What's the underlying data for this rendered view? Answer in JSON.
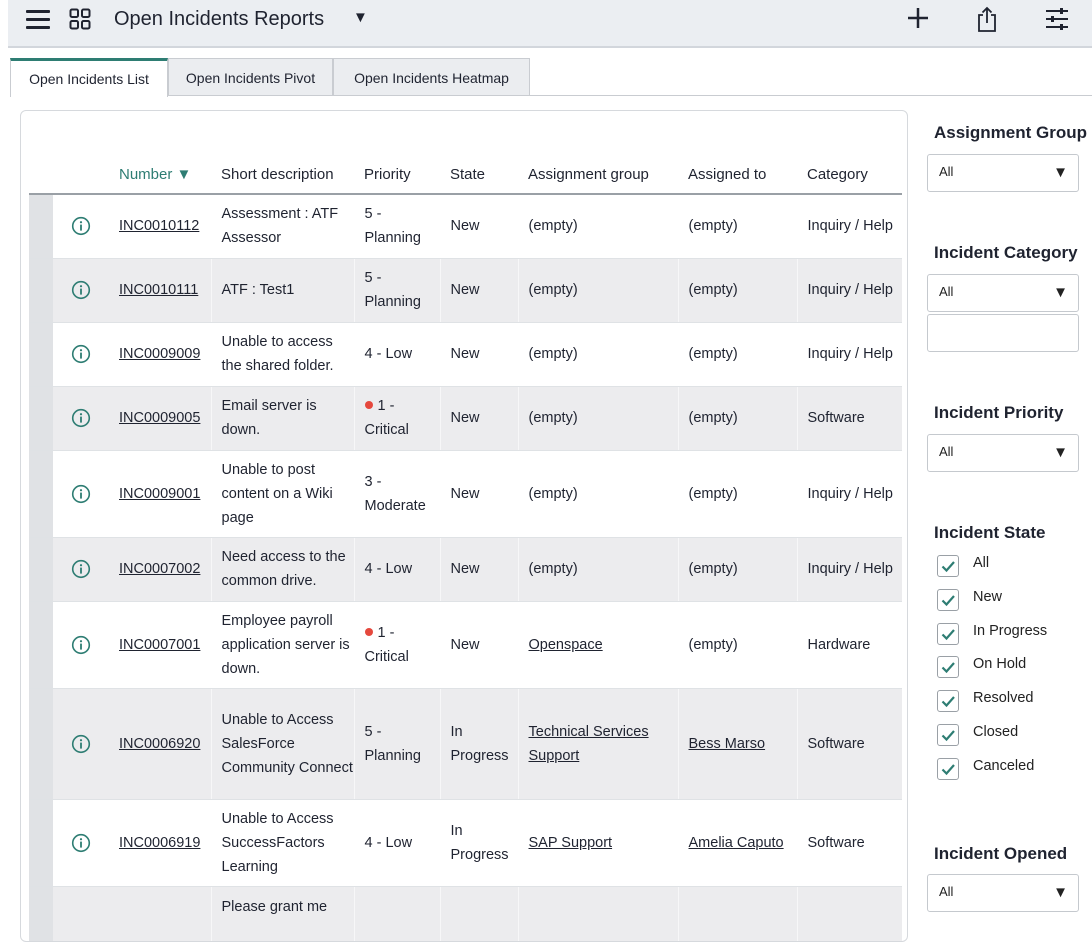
{
  "header": {
    "title": "Open Incidents Reports",
    "icons": [
      "hamburger-menu-icon",
      "grid-apps-icon",
      "caret-down-icon",
      "plus-icon",
      "share-icon",
      "sliders-icon"
    ]
  },
  "tabs": [
    {
      "label": "Open Incidents List",
      "active": true
    },
    {
      "label": "Open Incidents Pivot",
      "active": false
    },
    {
      "label": "Open Incidents Heatmap",
      "active": false
    }
  ],
  "table": {
    "columns": {
      "number": "Number ▼",
      "short_description": "Short description",
      "priority": "Priority",
      "state": "State",
      "assignment_group": "Assignment group",
      "assigned_to": "Assigned to",
      "category": "Category"
    },
    "rows": [
      {
        "number": "INC0010112",
        "short_description": "Assessment : ATF Assessor",
        "priority": "5 - Planning",
        "critical": false,
        "state": "New",
        "assignment_group": "(empty)",
        "group_link": false,
        "assigned_to": "(empty)",
        "assigned_link": false,
        "category": "Inquiry / Help"
      },
      {
        "number": "INC0010111",
        "short_description": "ATF : Test1",
        "priority": "5 - Planning",
        "critical": false,
        "state": "New",
        "assignment_group": "(empty)",
        "group_link": false,
        "assigned_to": "(empty)",
        "assigned_link": false,
        "category": "Inquiry / Help"
      },
      {
        "number": "INC0009009",
        "short_description": "Unable to access the shared folder.",
        "priority": "4 - Low",
        "critical": false,
        "state": "New",
        "assignment_group": "(empty)",
        "group_link": false,
        "assigned_to": "(empty)",
        "assigned_link": false,
        "category": "Inquiry / Help"
      },
      {
        "number": "INC0009005",
        "short_description": "Email server is down.",
        "priority": "1 - Critical",
        "critical": true,
        "state": "New",
        "assignment_group": "(empty)",
        "group_link": false,
        "assigned_to": "(empty)",
        "assigned_link": false,
        "category": "Software"
      },
      {
        "number": "INC0009001",
        "short_description": "Unable to post content on a Wiki page",
        "priority": "3 - Moderate",
        "critical": false,
        "state": "New",
        "assignment_group": "(empty)",
        "group_link": false,
        "assigned_to": "(empty)",
        "assigned_link": false,
        "category": "Inquiry / Help"
      },
      {
        "number": "INC0007002",
        "short_description": "Need access to the common drive.",
        "priority": "4 - Low",
        "critical": false,
        "state": "New",
        "assignment_group": "(empty)",
        "group_link": false,
        "assigned_to": "(empty)",
        "assigned_link": false,
        "category": "Inquiry / Help"
      },
      {
        "number": "INC0007001",
        "short_description": "Employee payroll application server is down.",
        "priority": "1 - Critical",
        "critical": true,
        "state": "New",
        "assignment_group": "Openspace",
        "group_link": true,
        "assigned_to": "(empty)",
        "assigned_link": false,
        "category": "Hardware"
      },
      {
        "number": "INC0006920",
        "short_description": "Unable to Access SalesForce Community Connect",
        "priority": "5 - Planning",
        "critical": false,
        "state": "In Progress",
        "assignment_group": "Technical Services Support",
        "group_link": true,
        "assigned_to": "Bess Marso",
        "assigned_link": true,
        "category": "Software"
      },
      {
        "number": "INC0006919",
        "short_description": "Unable to Access SuccessFactors Learning",
        "priority": "4 - Low",
        "critical": false,
        "state": "In Progress",
        "assignment_group": "SAP Support",
        "group_link": true,
        "assigned_to": "Amelia Caputo",
        "assigned_link": true,
        "category": "Software"
      },
      {
        "number": "",
        "short_description": "Please grant me",
        "priority": "",
        "critical": false,
        "state": "",
        "assignment_group": "",
        "group_link": false,
        "assigned_to": "",
        "assigned_link": false,
        "category": ""
      }
    ]
  },
  "filters": {
    "assignment_group": {
      "heading": "Assignment Group",
      "value": "All"
    },
    "incident_category": {
      "heading": "Incident Category",
      "value": "All",
      "text_value": ""
    },
    "incident_priority": {
      "heading": "Incident Priority",
      "value": "All"
    },
    "incident_state": {
      "heading": "Incident State",
      "options": [
        {
          "label": "All",
          "checked": true
        },
        {
          "label": "New",
          "checked": true
        },
        {
          "label": "In Progress",
          "checked": true
        },
        {
          "label": "On Hold",
          "checked": true
        },
        {
          "label": "Resolved",
          "checked": true
        },
        {
          "label": "Closed",
          "checked": true
        },
        {
          "label": "Canceled",
          "checked": true
        }
      ]
    },
    "incident_opened": {
      "heading": "Incident Opened",
      "value": "All"
    }
  },
  "colors": {
    "accent": "#2e7d73",
    "critical_dot": "#e5483d",
    "header_bg": "#ebeef2"
  }
}
